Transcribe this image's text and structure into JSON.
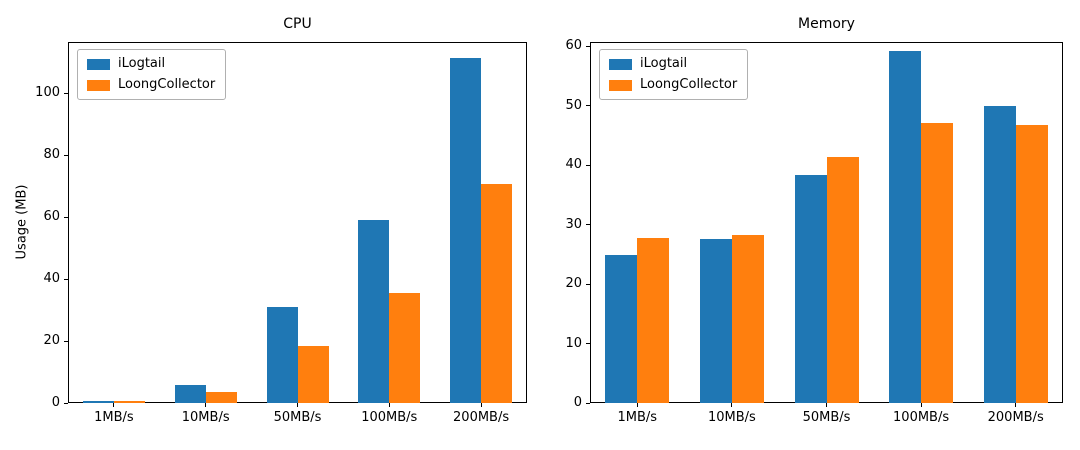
{
  "figure": {
    "background": "#ffffff"
  },
  "chart_data": [
    {
      "type": "bar",
      "title": "CPU",
      "xlabel": "",
      "ylabel": "Usage (MB)",
      "categories": [
        "1MB/s",
        "10MB/s",
        "50MB/s",
        "100MB/s",
        "200MB/s"
      ],
      "series": [
        {
          "name": "iLogtail",
          "color": "#1f77b4",
          "values": [
            0.8,
            5.8,
            31.0,
            59.0,
            111.3
          ]
        },
        {
          "name": "LoongCollector",
          "color": "#ff7f0e",
          "values": [
            0.7,
            3.5,
            18.4,
            35.5,
            70.6
          ]
        }
      ],
      "ylim": [
        0,
        116.5
      ],
      "yticks": [
        0,
        20,
        40,
        60,
        80,
        100
      ],
      "legend_position": "upper left",
      "grid": false
    },
    {
      "type": "bar",
      "title": "Memory",
      "xlabel": "",
      "ylabel": "",
      "categories": [
        "1MB/s",
        "10MB/s",
        "50MB/s",
        "100MB/s",
        "200MB/s"
      ],
      "series": [
        {
          "name": "iLogtail",
          "color": "#1f77b4",
          "values": [
            24.9,
            27.5,
            38.3,
            59.2,
            50.0
          ]
        },
        {
          "name": "LoongCollector",
          "color": "#ff7f0e",
          "values": [
            27.8,
            28.2,
            41.3,
            47.0,
            46.8
          ]
        }
      ],
      "ylim": [
        0,
        60.7
      ],
      "yticks": [
        0,
        10,
        20,
        30,
        40,
        50,
        60
      ],
      "legend_position": "upper left",
      "grid": false
    }
  ]
}
